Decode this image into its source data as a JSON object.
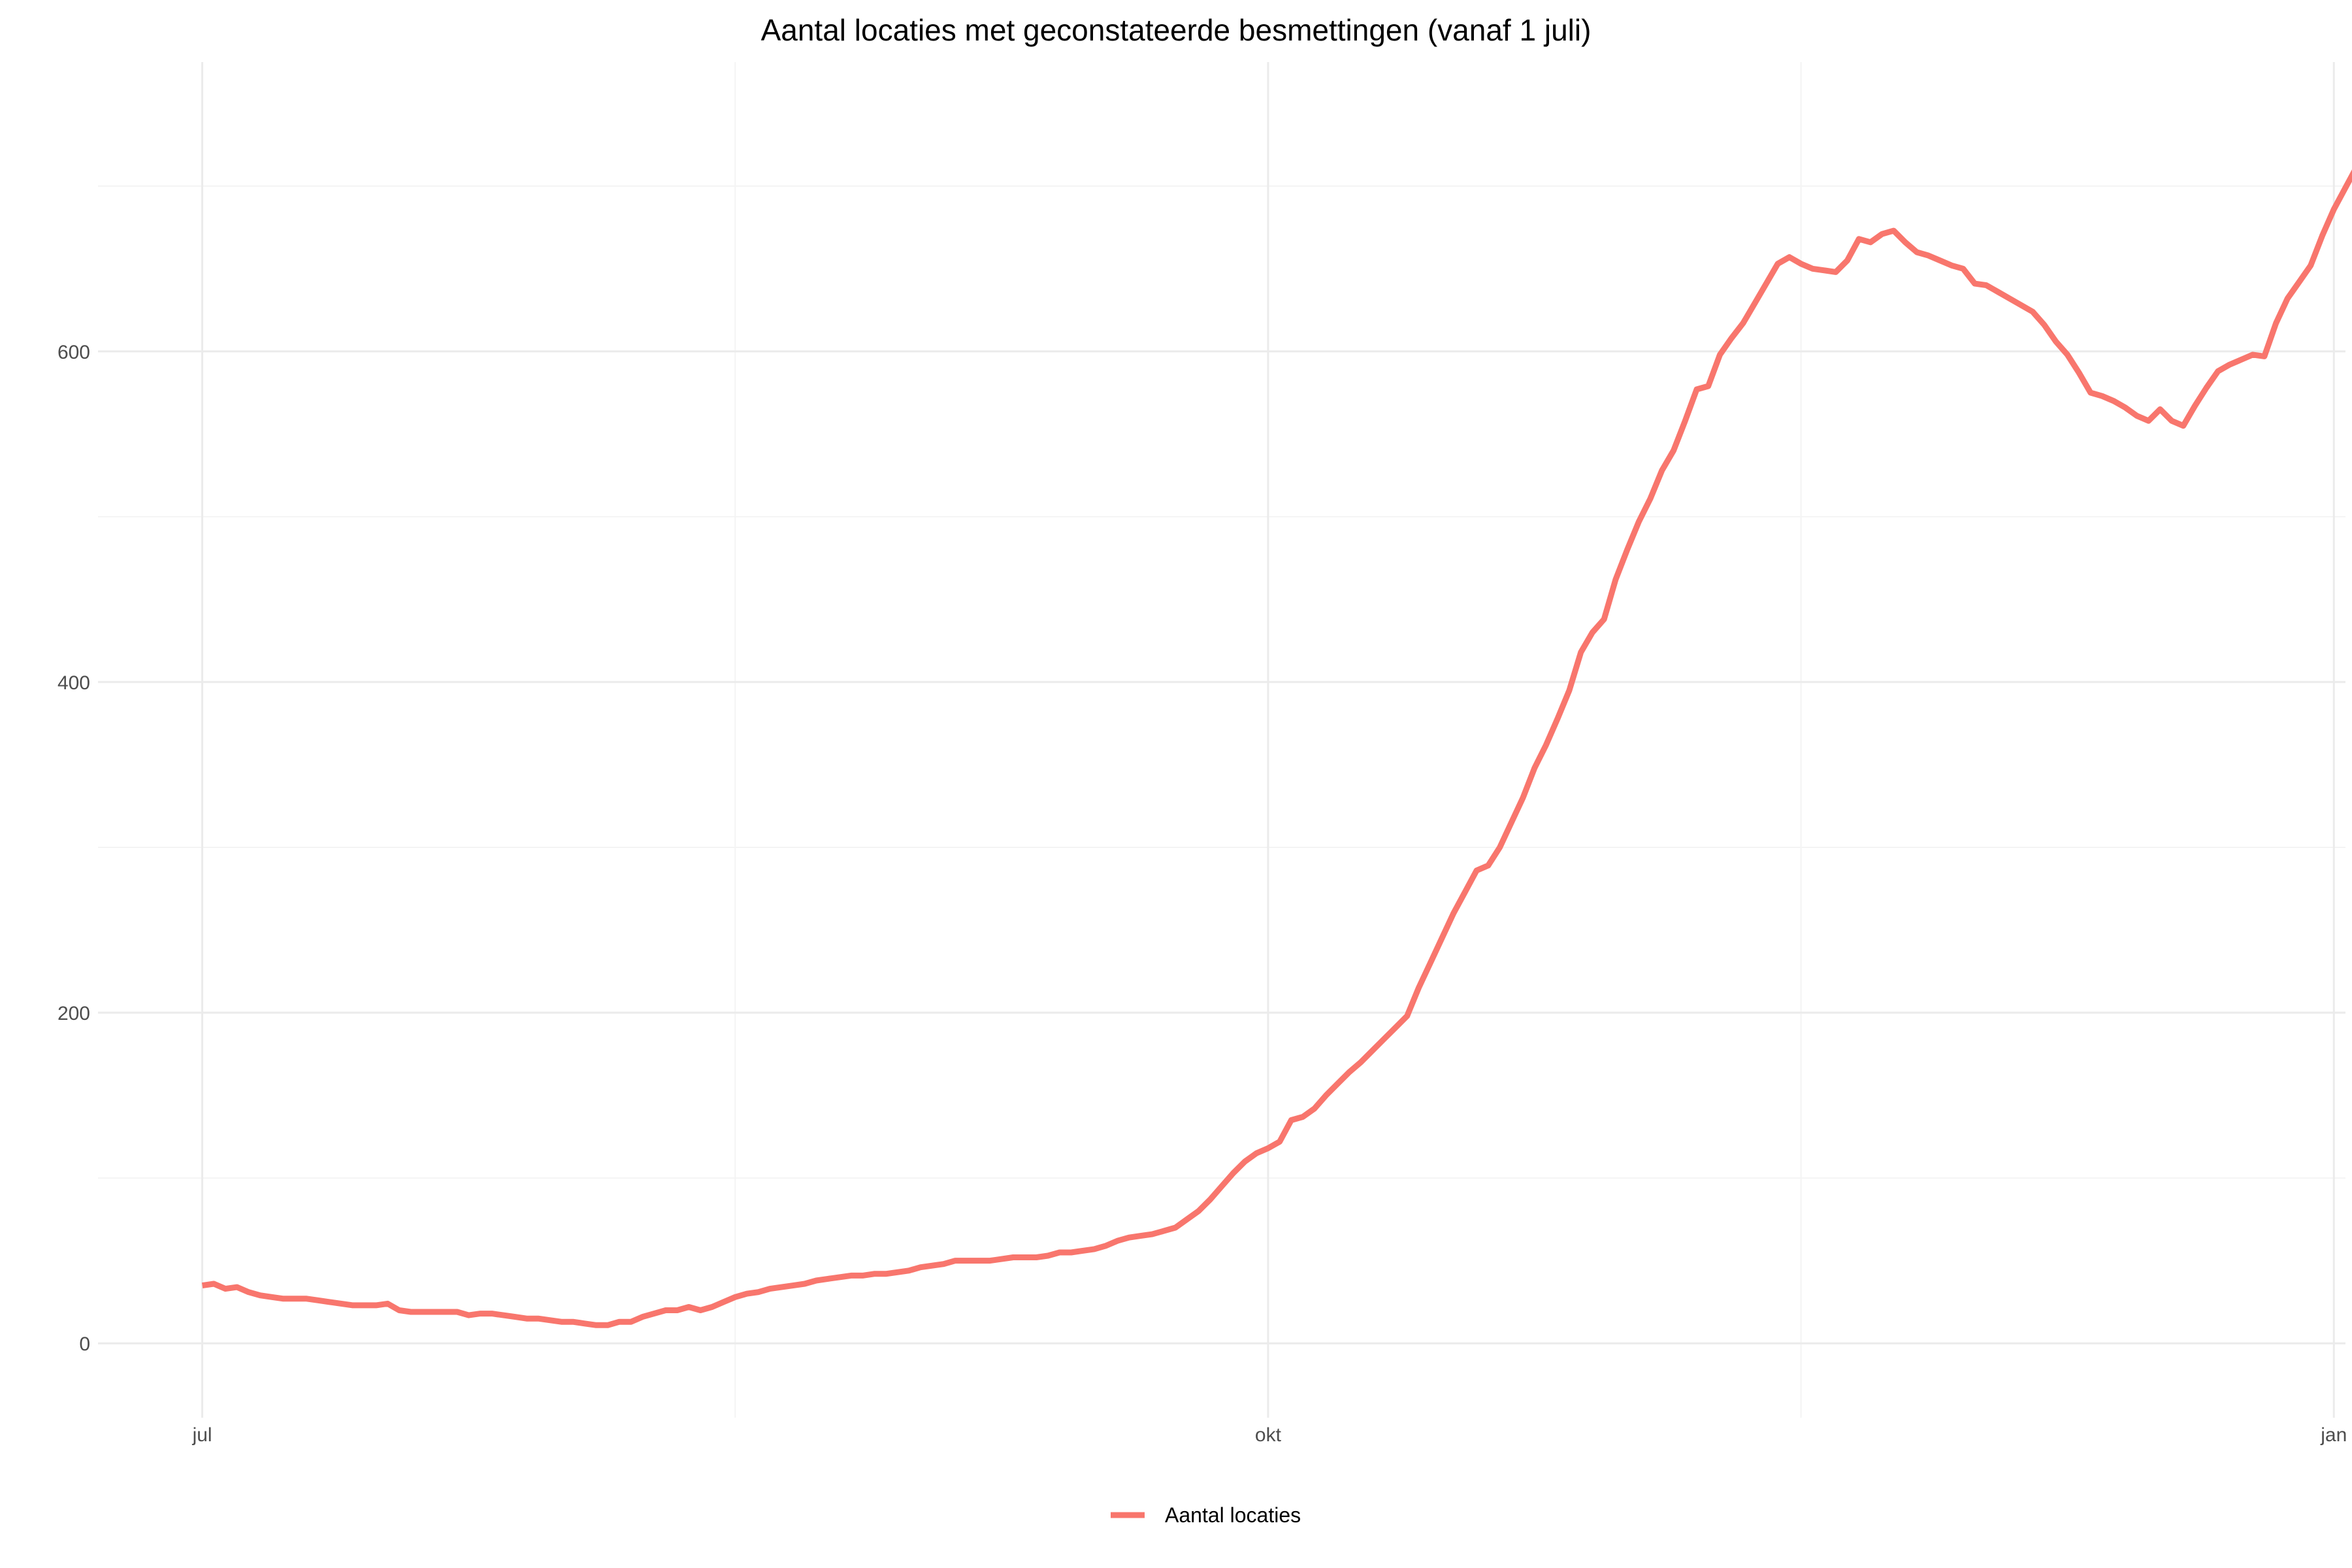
{
  "chart_data": {
    "type": "line",
    "title": "Aantal locaties met geconstateerde besmettingen (vanaf 1 juli)",
    "xlabel": "",
    "ylabel": "",
    "x_ticks": [
      {
        "label": "jul",
        "date": "2020-07-01"
      },
      {
        "label": "okt",
        "date": "2020-10-01"
      },
      {
        "label": "jan",
        "date": "2021-01-01"
      }
    ],
    "y_ticks": [
      0,
      200,
      400,
      600
    ],
    "y_minor_ticks": [
      100,
      300,
      500,
      700
    ],
    "xlim": [
      "2020-06-22",
      "2021-01-02"
    ],
    "ylim": [
      -45,
      775
    ],
    "grid": true,
    "legend_position": "bottom",
    "colors": {
      "series": "#f8766d",
      "grid_major": "#ebebeb",
      "grid_minor": "#f4f4f4"
    },
    "series": [
      {
        "name": "Aantal locaties",
        "start_date": "2020-07-01",
        "step_days": 1,
        "values": [
          35,
          36,
          33,
          34,
          31,
          29,
          28,
          27,
          27,
          27,
          26,
          25,
          24,
          23,
          23,
          23,
          24,
          20,
          19,
          19,
          19,
          19,
          19,
          17,
          18,
          18,
          17,
          16,
          15,
          15,
          14,
          13,
          13,
          12,
          11,
          11,
          13,
          13,
          16,
          18,
          20,
          20,
          22,
          20,
          22,
          25,
          28,
          30,
          31,
          33,
          34,
          35,
          36,
          38,
          39,
          40,
          41,
          41,
          42,
          42,
          43,
          44,
          46,
          47,
          48,
          50,
          50,
          50,
          50,
          51,
          52,
          52,
          52,
          53,
          55,
          55,
          56,
          57,
          59,
          62,
          64,
          65,
          66,
          68,
          70,
          75,
          80,
          87,
          95,
          103,
          110,
          115,
          118,
          122,
          135,
          137,
          142,
          150,
          157,
          164,
          170,
          177,
          184,
          191,
          198,
          215,
          230,
          245,
          260,
          273,
          286,
          289,
          300,
          315,
          330,
          348,
          362,
          378,
          395,
          418,
          430,
          438,
          462,
          480,
          497,
          511,
          528,
          540,
          558,
          577,
          579,
          598,
          608,
          617,
          629,
          641,
          653,
          657,
          653,
          650,
          649,
          648,
          655,
          668,
          666,
          671,
          673,
          666,
          660,
          658,
          655,
          652,
          650,
          641,
          640,
          636,
          632,
          628,
          624,
          616,
          606,
          598,
          587,
          575,
          573,
          570,
          566,
          561,
          558,
          565,
          558,
          555,
          567,
          578,
          588,
          592,
          595,
          598,
          597,
          617,
          632,
          642,
          652,
          670,
          686,
          699,
          712,
          724
        ]
      }
    ]
  }
}
